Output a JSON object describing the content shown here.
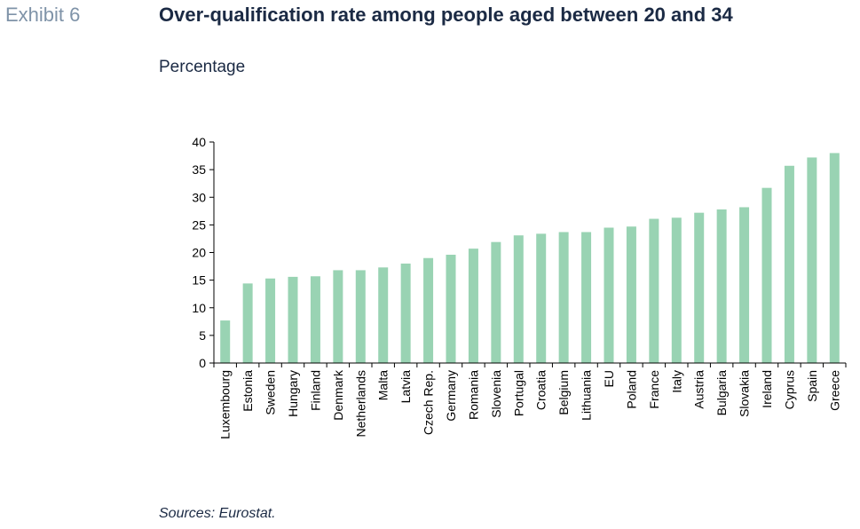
{
  "header": {
    "exhibit_label": "Exhibit 6",
    "title": "Over-qualification rate among people aged between 20 and 34",
    "subtitle": "Percentage"
  },
  "footer": {
    "source": "Sources: Eurostat."
  },
  "colors": {
    "bar": "#99d3b3",
    "axis": "#000000",
    "title": "#1b2a44",
    "exhibit": "#7f93a8"
  },
  "chart_data": {
    "type": "bar",
    "title": "Over-qualification rate among people aged between 20 and 34",
    "ylabel": "",
    "xlabel": "",
    "ylim": [
      0,
      40
    ],
    "yticks": [
      0,
      5,
      10,
      15,
      20,
      25,
      30,
      35,
      40
    ],
    "grid": false,
    "categories": [
      "Luxembourg",
      "Estonia",
      "Sweden",
      "Hungary",
      "Finland",
      "Denmark",
      "Netherlands",
      "Malta",
      "Latvia",
      "Czech Rep.",
      "Germany",
      "Romania",
      "Slovenia",
      "Portugal",
      "Croatia",
      "Belgium",
      "Lithuania",
      "EU",
      "Poland",
      "France",
      "Italy",
      "Austria",
      "Bulgaria",
      "Slovakia",
      "Ireland",
      "Cyprus",
      "Spain",
      "Greece"
    ],
    "values": [
      7.7,
      14.4,
      15.3,
      15.6,
      15.7,
      16.8,
      16.8,
      17.3,
      18.0,
      19.0,
      19.6,
      20.7,
      21.9,
      23.1,
      23.4,
      23.7,
      23.7,
      24.5,
      24.7,
      26.1,
      26.3,
      27.2,
      27.8,
      28.2,
      31.7,
      35.7,
      37.2,
      38.0
    ]
  }
}
